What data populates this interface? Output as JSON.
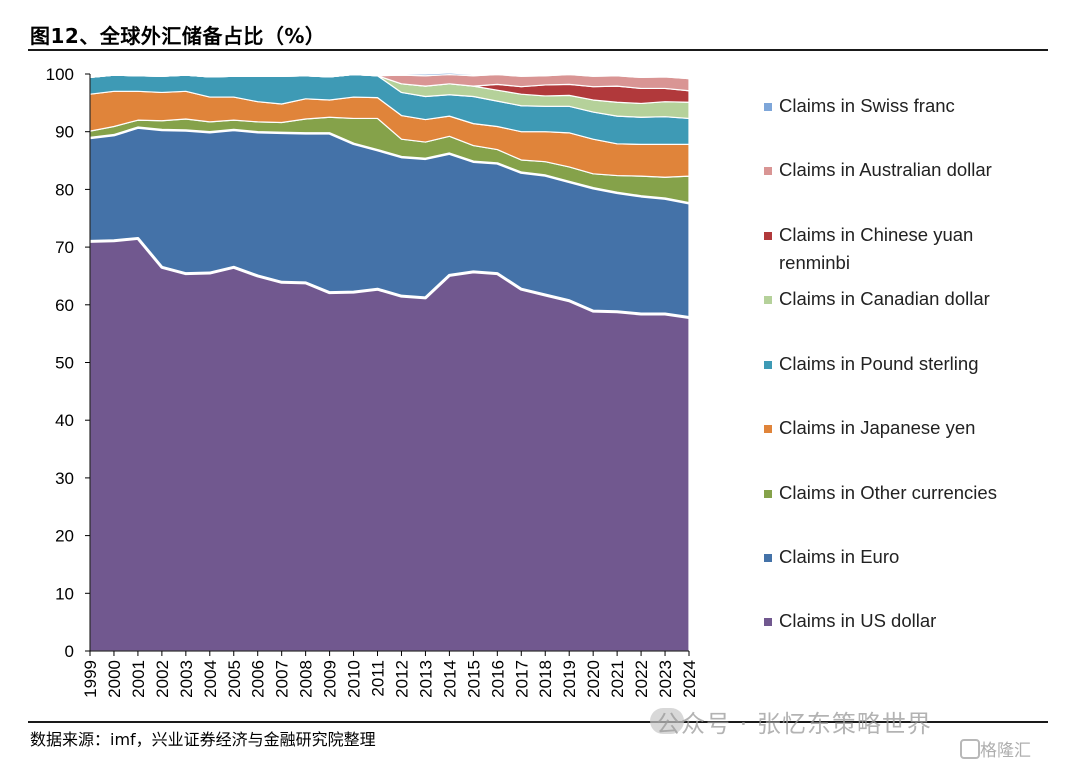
{
  "header": {
    "title": "图12、全球外汇储备占比（%）"
  },
  "footer": {
    "source": "数据来源：imf，兴业证券经济与金融研究院整理",
    "watermark": "公众号 · 张忆东策略世界",
    "badge": "格隆汇"
  },
  "chart_data": {
    "type": "area",
    "stacked": true,
    "title": "图12、全球外汇储备占比（%）",
    "xlabel": "",
    "ylabel": "",
    "ylim": [
      0,
      100
    ],
    "yticks": [
      0,
      10,
      20,
      30,
      40,
      50,
      60,
      70,
      80,
      90,
      100
    ],
    "grid": false,
    "legend_position": "right",
    "categories": [
      "1999",
      "2000",
      "2001",
      "2002",
      "2003",
      "2004",
      "2005",
      "2006",
      "2007",
      "2008",
      "2009",
      "2010",
      "2011",
      "2012",
      "2013",
      "2014",
      "2015",
      "2016",
      "2017",
      "2018",
      "2019",
      "2020",
      "2021",
      "2022",
      "2023",
      "2024"
    ],
    "series": [
      {
        "name": "Claims in US dollar",
        "color": "#71588f",
        "values": [
          71.0,
          71.1,
          71.5,
          66.5,
          65.4,
          65.5,
          66.5,
          65.0,
          63.9,
          63.8,
          62.1,
          62.2,
          62.7,
          61.5,
          61.2,
          65.1,
          65.7,
          65.4,
          62.7,
          61.7,
          60.7,
          58.9,
          58.8,
          58.4,
          58.4,
          57.8
        ]
      },
      {
        "name": "Claims in Euro",
        "color": "#4472a8",
        "values": [
          17.9,
          18.3,
          19.2,
          23.8,
          24.8,
          24.4,
          23.8,
          24.9,
          25.9,
          25.9,
          27.6,
          25.7,
          24.1,
          24.1,
          24.1,
          21.1,
          19.1,
          19.1,
          20.2,
          20.7,
          20.6,
          21.3,
          20.6,
          20.4,
          20.0,
          19.8
        ]
      },
      {
        "name": "Claims in Other currencies",
        "color": "#85a24a",
        "values": [
          1.2,
          1.5,
          1.3,
          1.6,
          2.0,
          1.8,
          1.7,
          1.8,
          1.8,
          2.5,
          2.8,
          4.4,
          5.5,
          3.1,
          2.9,
          3.0,
          2.8,
          2.4,
          2.2,
          2.4,
          2.6,
          2.5,
          3.0,
          3.5,
          3.7,
          4.7
        ]
      },
      {
        "name": "Claims in Japanese yen",
        "color": "#e0843a",
        "values": [
          6.4,
          6.1,
          5.0,
          4.9,
          4.8,
          4.3,
          4.0,
          3.5,
          3.2,
          3.5,
          3.0,
          3.7,
          3.6,
          4.1,
          3.9,
          3.5,
          3.8,
          4.0,
          4.9,
          5.2,
          5.9,
          6.0,
          5.5,
          5.5,
          5.7,
          5.5
        ]
      },
      {
        "name": "Claims in Pound sterling",
        "color": "#3e9ab5",
        "values": [
          2.9,
          2.8,
          2.7,
          2.8,
          2.8,
          3.5,
          3.6,
          4.4,
          4.8,
          4.0,
          4.0,
          3.9,
          3.8,
          4.0,
          4.0,
          3.7,
          4.7,
          4.4,
          4.5,
          4.4,
          4.6,
          4.7,
          4.8,
          4.7,
          4.8,
          4.5
        ]
      },
      {
        "name": "Claims in Canadian dollar",
        "color": "#b5d19a",
        "values": [
          0,
          0,
          0,
          0,
          0,
          0,
          0,
          0,
          0,
          0,
          0,
          0,
          0,
          1.5,
          1.8,
          1.9,
          1.8,
          1.9,
          2.0,
          1.8,
          1.9,
          2.1,
          2.4,
          2.4,
          2.6,
          2.8
        ]
      },
      {
        "name": "Claims in Chinese yuan renminbi",
        "color": "#b1393b",
        "values": [
          0,
          0,
          0,
          0,
          0,
          0,
          0,
          0,
          0,
          0,
          0,
          0,
          0,
          0,
          0,
          0,
          0,
          1.0,
          1.3,
          1.9,
          1.9,
          2.3,
          2.8,
          2.6,
          2.3,
          2.0
        ]
      },
      {
        "name": "Claims in Australian dollar",
        "color": "#d99594",
        "values": [
          0,
          0,
          0,
          0,
          0,
          0,
          0,
          0,
          0,
          0,
          0,
          0,
          0,
          1.5,
          1.8,
          1.6,
          1.8,
          1.7,
          1.8,
          1.6,
          1.7,
          1.8,
          1.8,
          1.9,
          2.0,
          2.1
        ]
      },
      {
        "name": "Claims in Swiss franc",
        "color": "#7ea6d9",
        "values": [
          0,
          0,
          0,
          0,
          0,
          0,
          0,
          0,
          0,
          0,
          0,
          0,
          0,
          0.2,
          0.3,
          0.3,
          0.2,
          0.2,
          0.2,
          0.2,
          0.2,
          0.2,
          0.2,
          0.2,
          0.2,
          0.2
        ]
      }
    ],
    "legend_order": [
      "Claims in Swiss franc",
      "Claims in Australian dollar",
      "Claims in Chinese yuan renminbi",
      "Claims in Canadian dollar",
      "Claims in Pound sterling",
      "Claims in Japanese yen",
      "Claims in Other currencies",
      "Claims in Euro",
      "Claims in US dollar"
    ]
  }
}
